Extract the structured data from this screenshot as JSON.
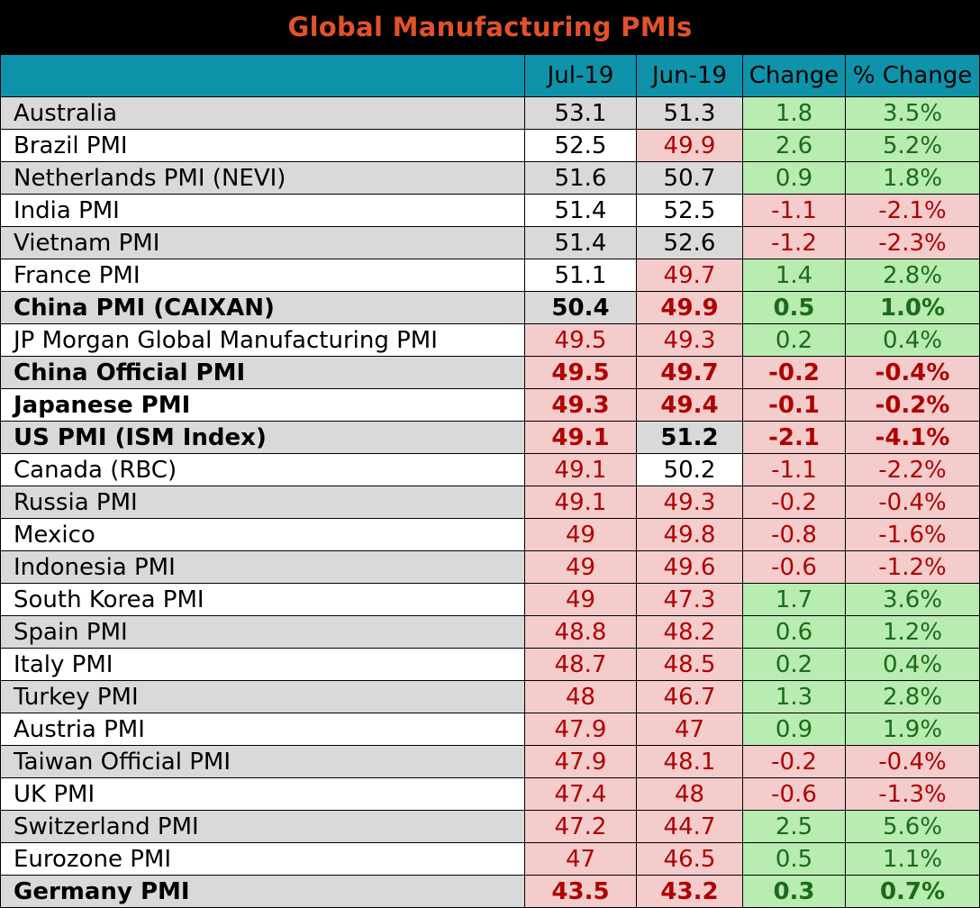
{
  "title": "Global Manufacturing PMIs",
  "headers": [
    "",
    "Jul-19",
    "Jun-19",
    "Change",
    "% Change"
  ],
  "colors": {
    "title_bg": "#000000",
    "title_text": "#e0522a",
    "header_bg": "#0e93aa",
    "below_50_bg": "#f4cccc",
    "below_50_text": "#b00000",
    "positive_bg": "#b8ecb0",
    "positive_text": "#1c6b1c"
  },
  "rows": [
    {
      "name": "Australia",
      "jul": "53.1",
      "jun": "51.3",
      "change": "1.8",
      "pct": "3.5%",
      "bold": false
    },
    {
      "name": "Brazil PMI",
      "jul": "52.5",
      "jun": "49.9",
      "change": "2.6",
      "pct": "5.2%",
      "bold": false
    },
    {
      "name": "Netherlands PMI (NEVI)",
      "jul": "51.6",
      "jun": "50.7",
      "change": "0.9",
      "pct": "1.8%",
      "bold": false
    },
    {
      "name": "India PMI",
      "jul": "51.4",
      "jun": "52.5",
      "change": "-1.1",
      "pct": "-2.1%",
      "bold": false
    },
    {
      "name": "Vietnam PMI",
      "jul": "51.4",
      "jun": "52.6",
      "change": "-1.2",
      "pct": "-2.3%",
      "bold": false
    },
    {
      "name": "France PMI",
      "jul": "51.1",
      "jun": "49.7",
      "change": "1.4",
      "pct": "2.8%",
      "bold": false
    },
    {
      "name": "China PMI (CAIXAN)",
      "jul": "50.4",
      "jun": "49.9",
      "change": "0.5",
      "pct": "1.0%",
      "bold": true
    },
    {
      "name": "JP Morgan Global Manufacturing PMI",
      "jul": "49.5",
      "jun": "49.3",
      "change": "0.2",
      "pct": "0.4%",
      "bold": false
    },
    {
      "name": "China Official PMI",
      "jul": "49.5",
      "jun": "49.7",
      "change": "-0.2",
      "pct": "-0.4%",
      "bold": true
    },
    {
      "name": "Japanese PMI",
      "jul": "49.3",
      "jun": "49.4",
      "change": "-0.1",
      "pct": "-0.2%",
      "bold": true
    },
    {
      "name": "US PMI (ISM Index)",
      "jul": "49.1",
      "jun": "51.2",
      "change": "-2.1",
      "pct": "-4.1%",
      "bold": true
    },
    {
      "name": "Canada (RBC)",
      "jul": "49.1",
      "jun": "50.2",
      "change": "-1.1",
      "pct": "-2.2%",
      "bold": false
    },
    {
      "name": "Russia PMI",
      "jul": "49.1",
      "jun": "49.3",
      "change": "-0.2",
      "pct": "-0.4%",
      "bold": false
    },
    {
      "name": "Mexico",
      "jul": "49",
      "jun": "49.8",
      "change": "-0.8",
      "pct": "-1.6%",
      "bold": false
    },
    {
      "name": "Indonesia PMI",
      "jul": "49",
      "jun": "49.6",
      "change": "-0.6",
      "pct": "-1.2%",
      "bold": false
    },
    {
      "name": "South Korea PMI",
      "jul": "49",
      "jun": "47.3",
      "change": "1.7",
      "pct": "3.6%",
      "bold": false
    },
    {
      "name": "Spain PMI",
      "jul": "48.8",
      "jun": "48.2",
      "change": "0.6",
      "pct": "1.2%",
      "bold": false
    },
    {
      "name": "Italy PMI",
      "jul": "48.7",
      "jun": "48.5",
      "change": "0.2",
      "pct": "0.4%",
      "bold": false
    },
    {
      "name": "Turkey PMI",
      "jul": "48",
      "jun": "46.7",
      "change": "1.3",
      "pct": "2.8%",
      "bold": false
    },
    {
      "name": "Austria PMI",
      "jul": "47.9",
      "jun": "47",
      "change": "0.9",
      "pct": "1.9%",
      "bold": false
    },
    {
      "name": "Taiwan Official PMI",
      "jul": "47.9",
      "jun": "48.1",
      "change": "-0.2",
      "pct": "-0.4%",
      "bold": false
    },
    {
      "name": "UK PMI",
      "jul": "47.4",
      "jun": "48",
      "change": "-0.6",
      "pct": "-1.3%",
      "bold": false
    },
    {
      "name": "Switzerland PMI",
      "jul": "47.2",
      "jun": "44.7",
      "change": "2.5",
      "pct": "5.6%",
      "bold": false
    },
    {
      "name": "Eurozone PMI",
      "jul": "47",
      "jun": "46.5",
      "change": "0.5",
      "pct": "1.1%",
      "bold": false
    },
    {
      "name": "Germany PMI",
      "jul": "43.5",
      "jun": "43.2",
      "change": "0.3",
      "pct": "0.7%",
      "bold": true
    }
  ]
}
